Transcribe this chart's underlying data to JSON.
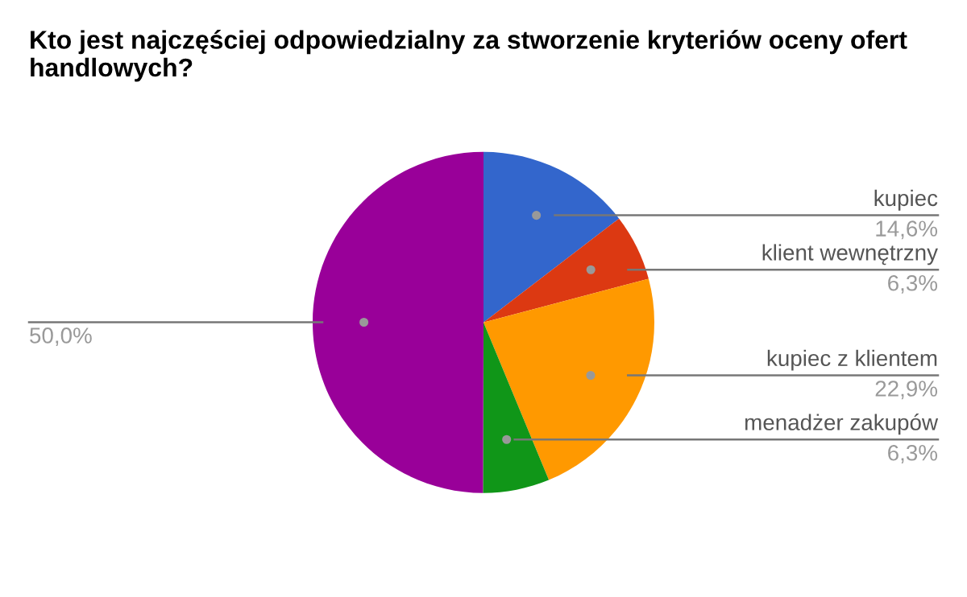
{
  "chart_data": {
    "type": "pie",
    "title": "Kto jest najczęściej odpowiedzialny za stworzenie kryteriów oceny ofert handlowych?",
    "categories": [
      "kupiec",
      "klient wewnętrzny",
      "kupiec z klientem",
      "menadżer zakupów",
      null
    ],
    "values": [
      14.6,
      6.3,
      22.9,
      6.3,
      50.0
    ],
    "value_labels": [
      "14,6%",
      "6,3%",
      "22,9%",
      "6,3%",
      "50,0%"
    ],
    "colors": [
      "#3366cc",
      "#dc3912",
      "#ff9900",
      "#109618",
      "#990099"
    ],
    "legend": false
  }
}
